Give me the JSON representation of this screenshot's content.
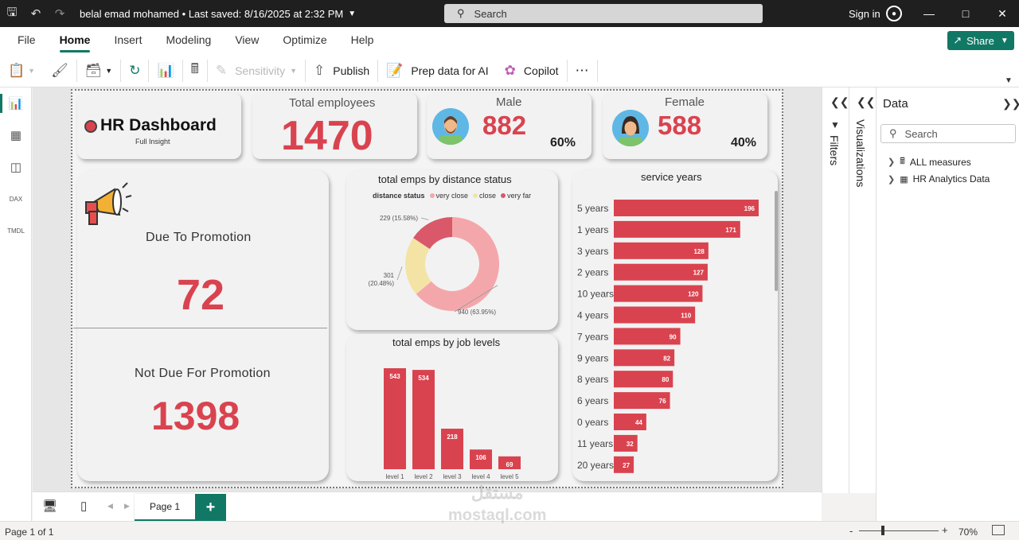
{
  "titlebar": {
    "title": "belal emad mohamed",
    "saved": "Last saved: 8/16/2025 at 2:32 PM",
    "search_placeholder": "Search",
    "signin": "Sign in"
  },
  "menu": [
    "File",
    "Home",
    "Insert",
    "Modeling",
    "View",
    "Optimize",
    "Help"
  ],
  "share_label": "Share",
  "ribbon": {
    "sensitivity": "Sensitivity",
    "publish": "Publish",
    "prep_data": "Prep data for AI",
    "copilot": "Copilot"
  },
  "leftnav": {
    "dax_label": "DAX",
    "tmdl_label": "TMDL"
  },
  "dashboard": {
    "title": "HR Dashboard",
    "subtitle": "Full Insight",
    "total_label": "Total employees",
    "total_value": "1470",
    "male_label": "Male",
    "male_value": "882",
    "male_pct": "60%",
    "female_label": "Female",
    "female_value": "588",
    "female_pct": "40%",
    "due_label": "Due To Promotion",
    "due_value": "72",
    "not_due_label": "Not Due For Promotion",
    "not_due_value": "1398"
  },
  "chart_data": [
    {
      "type": "pie",
      "title": "total emps by distance status",
      "legend_title": "distance status",
      "categories": [
        "very close",
        "close",
        "very far"
      ],
      "values": [
        940,
        301,
        229
      ],
      "labels": [
        "940 (63.95%)",
        "301 (20.48%)",
        "229 (15.58%)"
      ],
      "colors": [
        "#f4a7ab",
        "#f3e4a6",
        "#d9586a"
      ],
      "legend_position": "top"
    },
    {
      "type": "bar",
      "title": "total emps by job levels",
      "categories": [
        "level 1",
        "level 2",
        "level 3",
        "level 4",
        "level 5"
      ],
      "values": [
        543,
        534,
        218,
        106,
        69
      ],
      "color": "#d9434f"
    },
    {
      "type": "bar",
      "orientation": "horizontal",
      "title": "service years",
      "categories": [
        "5 years",
        "1 years",
        "3 years",
        "2 years",
        "10 years",
        "4 years",
        "7 years",
        "9 years",
        "8 years",
        "6 years",
        "0 years",
        "11 years",
        "20 years"
      ],
      "values": [
        196,
        171,
        128,
        127,
        120,
        110,
        90,
        82,
        80,
        76,
        44,
        32,
        27
      ],
      "color": "#d9434f"
    }
  ],
  "panes": {
    "filters": "Filters",
    "visualizations": "Visualizations",
    "data_title": "Data",
    "data_search": "Search",
    "tree": [
      "ALL measures",
      "HR Analytics Data"
    ]
  },
  "pages": {
    "tab": "Page 1",
    "status": "Page 1 of 1"
  },
  "zoom": {
    "value": "70%",
    "level": 0.3
  },
  "watermark": {
    "arabic": "مستقل",
    "latin": "mostaql.com"
  }
}
